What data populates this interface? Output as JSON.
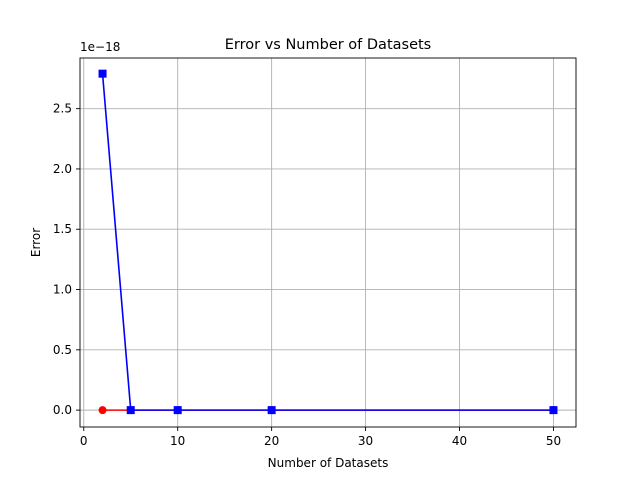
{
  "chart_data": {
    "type": "line",
    "title": "Error vs Number of Datasets",
    "xlabel": "Number of Datasets",
    "ylabel": "Error",
    "y_offset_label": "1e−18",
    "xlim": [
      -0.4,
      52.4
    ],
    "ylim": [
      -0.14,
      2.92
    ],
    "x_scale_factor": 1,
    "y_scale_factor": 1e-18,
    "xticks": [
      0,
      10,
      20,
      30,
      40,
      50
    ],
    "xtick_labels": [
      "0",
      "10",
      "20",
      "30",
      "40",
      "50"
    ],
    "yticks": [
      0.0,
      0.5,
      1.0,
      1.5,
      2.0,
      2.5
    ],
    "ytick_labels": [
      "0.0",
      "0.5",
      "1.0",
      "1.5",
      "2.0",
      "2.5"
    ],
    "grid": true,
    "legend": "none",
    "series": [
      {
        "color": "#ff0000",
        "marker": "circle",
        "x": [
          2,
          5,
          10,
          20,
          50
        ],
        "y": [
          0,
          0,
          0,
          0,
          0
        ]
      },
      {
        "color": "#0000ff",
        "marker": "square",
        "x": [
          2,
          5,
          10,
          20,
          50
        ],
        "y": [
          2.79,
          0,
          0,
          0,
          0
        ]
      }
    ]
  }
}
